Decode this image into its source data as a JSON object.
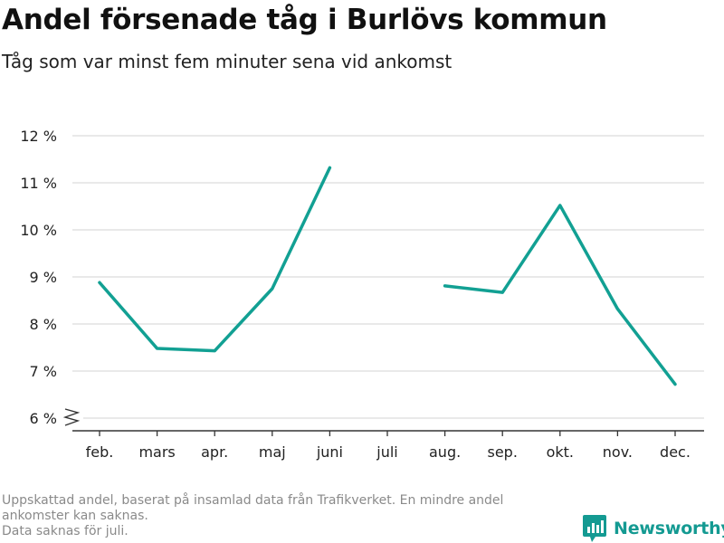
{
  "title": "Andel försenade tåg i Burlövs kommun",
  "subtitle": "Tåg som var minst fem minuter sena vid ankomst",
  "footnote": {
    "line1": "Uppskattad andel, baserat på insamlad data från Trafikverket. En mindre andel",
    "line2": "ankomster kan saknas.",
    "line3": "Data saknas för juli."
  },
  "brand": {
    "name": "Newsworthy",
    "icon": "newsworthy-logo-icon",
    "color": "#149a92"
  },
  "colors": {
    "line": "#12a093",
    "grid": "#dcdcdc",
    "axis": "#333333"
  },
  "chart_data": {
    "type": "line",
    "title": "Andel försenade tåg i Burlövs kommun",
    "subtitle": "Tåg som var minst fem minuter sena vid ankomst",
    "categories": [
      "feb.",
      "mars",
      "apr.",
      "maj",
      "juni",
      "juli",
      "aug.",
      "sep.",
      "okt.",
      "nov.",
      "dec."
    ],
    "series": [
      {
        "values": [
          8.88,
          7.48,
          7.43,
          8.75,
          11.32,
          null,
          8.81,
          8.67,
          10.52,
          8.32,
          6.72
        ]
      }
    ],
    "y_ticks": [
      6,
      7,
      8,
      9,
      10,
      11,
      12
    ],
    "y_tick_labels": [
      "6 %",
      "7 %",
      "8 %",
      "9 %",
      "10 %",
      "11 %",
      "12 %"
    ],
    "ylim": [
      6,
      12
    ],
    "y_axis_break": true,
    "grid": true,
    "xlabel": "",
    "ylabel": ""
  }
}
